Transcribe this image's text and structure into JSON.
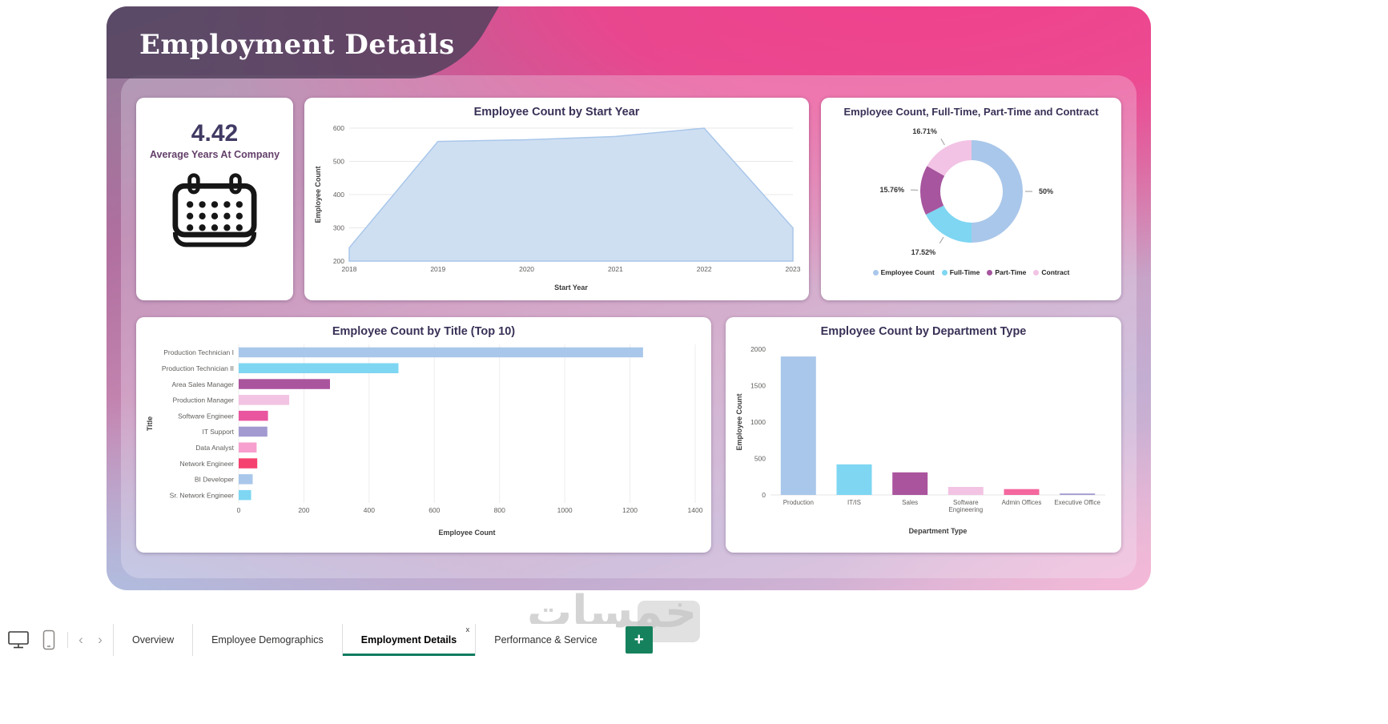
{
  "header": {
    "title": "Employment Details"
  },
  "kpi": {
    "value": "4.42",
    "label": "Average Years At Company",
    "icon": "calendar-icon"
  },
  "chart_data": [
    {
      "id": "start_year",
      "type": "area",
      "title": "Employee Count by Start Year",
      "xlabel": "Start Year",
      "ylabel": "Employee Count",
      "x": [
        2018,
        2019,
        2020,
        2021,
        2022,
        2023
      ],
      "values": [
        240,
        560,
        565,
        575,
        600,
        300
      ],
      "ylim": [
        200,
        600
      ],
      "yticks": [
        200,
        300,
        400,
        500,
        600
      ],
      "fill": "#cfdff2",
      "stroke": "#a9c7ea",
      "grid": true,
      "legend_position": "none"
    },
    {
      "id": "employment_type",
      "type": "pie",
      "title": "Employee Count, Full-Time, Part-Time and Contract",
      "donut": true,
      "legend_position": "bottom",
      "slices": [
        {
          "label": "Employee Count",
          "value_pct": 50,
          "display": "50%",
          "color": "#a9c7ea"
        },
        {
          "label": "Full-Time",
          "value_pct": 17.52,
          "display": "17.52%",
          "color": "#7ed6f2"
        },
        {
          "label": "Part-Time",
          "value_pct": 15.76,
          "display": "15.76%",
          "color": "#a6559e"
        },
        {
          "label": "Contract",
          "value_pct": 16.71,
          "display": "16.71%",
          "color": "#f2c3e4"
        }
      ]
    },
    {
      "id": "title_top10",
      "type": "bar",
      "title": "Employee Count by Title (Top 10)",
      "xlabel": "Employee Count",
      "ylabel": "Title",
      "categories": [
        "Production Technician I",
        "Production Technician II",
        "Area Sales Manager",
        "Production Manager",
        "Software Engineer",
        "IT Support",
        "Data Analyst",
        "Network Engineer",
        "BI Developer",
        "Sr. Network Engineer"
      ],
      "values": [
        1240,
        490,
        280,
        155,
        90,
        88,
        55,
        57,
        43,
        38
      ],
      "colors": [
        "#a9c7ea",
        "#7ed6f2",
        "#ab549e",
        "#f2c3e3",
        "#e9559f",
        "#a39ad1",
        "#f79fce",
        "#f5416f",
        "#a9c7ea",
        "#7ed6f2"
      ],
      "xlim": [
        0,
        1400
      ],
      "xticks": [
        0,
        200,
        400,
        600,
        800,
        1000,
        1200,
        1400
      ],
      "grid": true
    },
    {
      "id": "department_type",
      "type": "column",
      "title": "Employee Count by Department Type",
      "xlabel": "Department Type",
      "ylabel": "Employee Count",
      "categories": [
        "Production",
        "IT/IS",
        "Sales",
        "Software\nEngineering",
        "Admin Offices",
        "Executive Office"
      ],
      "values": [
        1900,
        420,
        310,
        110,
        80,
        20
      ],
      "colors": [
        "#a9c7ea",
        "#7ed6f2",
        "#ab549e",
        "#f2c3e3",
        "#f4679f",
        "#a39ad1"
      ],
      "ylim": [
        0,
        2000
      ],
      "yticks": [
        0,
        500,
        1000,
        1500,
        2000
      ]
    }
  ],
  "footer": {
    "tabs": [
      {
        "label": "Overview",
        "active": false
      },
      {
        "label": "Employee Demographics",
        "active": false
      },
      {
        "label": "Employment Details",
        "active": true,
        "close_label": "x"
      },
      {
        "label": "Performance & Service",
        "active": false
      }
    ],
    "add_label": "+",
    "nav": {
      "back": "‹",
      "forward": "›"
    },
    "icons": [
      "monitor-icon",
      "phone-icon",
      "back-icon",
      "forward-icon",
      "add-page-icon"
    ]
  },
  "watermark": {
    "text": "خمسات"
  },
  "colors": {
    "accent_teal": "#0e7c5f",
    "title_text": "#3a3157",
    "banner": "#4f3f5c"
  }
}
